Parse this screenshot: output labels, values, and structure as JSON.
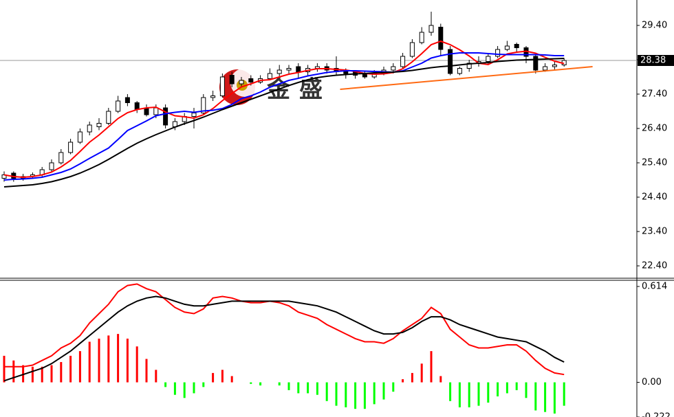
{
  "chart_data": [
    {
      "type": "candlestick",
      "open": [
        24.95,
        25.1,
        24.95,
        25.0,
        25.05,
        25.2,
        25.4,
        25.7,
        26.0,
        26.3,
        26.45,
        26.55,
        26.9,
        27.3,
        27.15,
        27.0,
        26.8,
        27.0,
        26.45,
        26.6,
        26.75,
        26.85,
        27.3,
        27.35,
        27.95,
        27.7,
        27.85,
        27.75,
        27.85,
        28.0,
        28.1,
        28.2,
        28.05,
        28.15,
        28.2,
        28.15,
        28.1,
        28.05,
        28.0,
        27.9,
        28.0,
        28.1,
        28.2,
        28.5,
        28.9,
        29.2,
        29.35,
        28.7,
        28.0,
        28.15,
        28.3,
        28.35,
        28.5,
        28.7,
        28.85,
        28.75,
        28.5,
        28.1,
        28.2,
        28.25
      ],
      "high": [
        25.15,
        25.15,
        25.08,
        25.12,
        25.28,
        25.5,
        25.8,
        26.1,
        26.4,
        26.6,
        26.7,
        27.0,
        27.35,
        27.4,
        27.2,
        27.1,
        27.1,
        27.1,
        26.7,
        26.85,
        27.0,
        27.4,
        27.5,
        28.0,
        28.05,
        27.9,
        27.95,
        27.95,
        28.15,
        28.25,
        28.25,
        28.3,
        28.25,
        28.3,
        28.3,
        28.5,
        28.15,
        28.1,
        28.05,
        28.1,
        28.2,
        28.3,
        28.6,
        29.0,
        29.35,
        29.8,
        29.45,
        28.8,
        28.2,
        28.4,
        28.5,
        28.6,
        28.8,
        28.95,
        28.9,
        28.8,
        28.55,
        28.3,
        28.35,
        28.45
      ],
      "low": [
        24.85,
        24.85,
        24.88,
        24.95,
        25.0,
        25.15,
        25.35,
        25.65,
        25.95,
        26.2,
        26.35,
        26.5,
        26.85,
        27.05,
        26.85,
        26.75,
        26.7,
        26.4,
        26.35,
        26.5,
        26.4,
        26.8,
        27.2,
        27.3,
        27.6,
        27.6,
        27.65,
        27.7,
        27.8,
        27.9,
        28.0,
        27.85,
        27.95,
        28.05,
        28.0,
        27.95,
        27.85,
        27.85,
        27.85,
        27.85,
        27.95,
        28.0,
        28.15,
        28.45,
        28.85,
        29.1,
        28.5,
        27.95,
        27.95,
        28.05,
        28.2,
        28.25,
        28.45,
        28.65,
        28.6,
        28.3,
        28.0,
        28.05,
        28.1,
        28.2
      ],
      "close": [
        25.05,
        24.95,
        25.0,
        25.05,
        25.2,
        25.4,
        25.7,
        26.0,
        26.3,
        26.5,
        26.55,
        26.9,
        27.2,
        27.15,
        26.95,
        26.8,
        27.0,
        26.5,
        26.6,
        26.75,
        26.85,
        27.3,
        27.35,
        27.9,
        27.7,
        27.8,
        27.75,
        27.85,
        28.0,
        28.1,
        28.15,
        28.05,
        28.15,
        28.2,
        28.1,
        28.05,
        28.0,
        27.95,
        27.9,
        28.0,
        28.1,
        28.2,
        28.5,
        28.9,
        29.2,
        29.4,
        28.7,
        28.0,
        28.15,
        28.3,
        28.35,
        28.5,
        28.7,
        28.8,
        28.75,
        28.5,
        28.1,
        28.2,
        28.25,
        28.38
      ],
      "up_color": "#ffffff",
      "down_color": "#000000",
      "series": [
        {
          "color": "#ff0000",
          "values": [
            25.05,
            25.0,
            24.98,
            25.0,
            25.05,
            25.13,
            25.28,
            25.47,
            25.73,
            26.0,
            26.21,
            26.45,
            26.69,
            26.86,
            26.95,
            27.0,
            27.02,
            26.88,
            26.77,
            26.74,
            26.7,
            26.8,
            26.98,
            27.21,
            27.42,
            27.61,
            27.7,
            27.8,
            27.82,
            27.9,
            27.98,
            28.03,
            28.09,
            28.14,
            28.14,
            28.12,
            28.1,
            28.06,
            28.0,
            27.98,
            27.99,
            28.03,
            28.14,
            28.34,
            28.58,
            28.84,
            28.94,
            28.84,
            28.69,
            28.51,
            28.3,
            28.26,
            28.4,
            28.57,
            28.62,
            28.65,
            28.59,
            28.47,
            28.36,
            28.29
          ]
        },
        {
          "color": "#0000ff",
          "values": [
            24.9,
            24.92,
            24.93,
            24.95,
            24.98,
            25.05,
            25.12,
            25.22,
            25.37,
            25.53,
            25.68,
            25.83,
            26.08,
            26.34,
            26.48,
            26.62,
            26.77,
            26.83,
            26.87,
            26.9,
            26.87,
            26.91,
            26.93,
            26.98,
            27.1,
            27.27,
            27.35,
            27.46,
            27.6,
            27.7,
            27.8,
            27.86,
            27.93,
            27.98,
            28.03,
            28.06,
            28.08,
            28.08,
            28.07,
            28.06,
            28.05,
            28.04,
            28.08,
            28.19,
            28.3,
            28.45,
            28.52,
            28.57,
            28.6,
            28.6,
            28.6,
            28.58,
            28.56,
            28.55,
            28.55,
            28.55,
            28.55,
            28.54,
            28.52,
            28.52
          ]
        },
        {
          "color": "#000000",
          "values": [
            24.7,
            24.72,
            24.74,
            24.76,
            24.8,
            24.85,
            24.92,
            25.0,
            25.1,
            25.22,
            25.35,
            25.5,
            25.66,
            25.82,
            25.97,
            26.1,
            26.22,
            26.33,
            26.44,
            26.54,
            26.63,
            26.73,
            26.84,
            26.95,
            27.05,
            27.15,
            27.25,
            27.35,
            27.45,
            27.55,
            27.65,
            27.74,
            27.82,
            27.88,
            27.92,
            27.95,
            27.97,
            27.99,
            28.0,
            28.02,
            28.03,
            28.04,
            28.06,
            28.09,
            28.13,
            28.17,
            28.2,
            28.22,
            28.25,
            28.28,
            28.3,
            28.32,
            28.35,
            28.37,
            28.39,
            28.4,
            28.41,
            28.42,
            28.43,
            28.44
          ]
        }
      ],
      "trendline": {
        "color": "#ff6a13",
        "x": [
          35.4,
          62
        ],
        "y": [
          27.54,
          28.2
        ]
      },
      "last_price": 28.38,
      "ylim": [
        22.04,
        30.14
      ],
      "yticks": [
        {
          "value": 29.4,
          "label": "29.40"
        },
        {
          "value": 28.4,
          "label": "28.40"
        },
        {
          "value": 27.4,
          "label": "27.40"
        },
        {
          "value": 26.4,
          "label": "26.40"
        },
        {
          "value": 25.4,
          "label": "25.40"
        },
        {
          "value": 24.4,
          "label": "24.40"
        },
        {
          "value": 23.4,
          "label": "23.40"
        },
        {
          "value": 22.4,
          "label": "22.40"
        }
      ],
      "watermark": [
        "金",
        "盛"
      ]
    },
    {
      "type": "macd",
      "series": [
        {
          "color": "#ff0000",
          "values": [
            0.1,
            0.1,
            0.1,
            0.11,
            0.14,
            0.17,
            0.22,
            0.25,
            0.3,
            0.38,
            0.44,
            0.5,
            0.58,
            0.62,
            0.63,
            0.6,
            0.58,
            0.53,
            0.48,
            0.45,
            0.44,
            0.47,
            0.54,
            0.55,
            0.54,
            0.52,
            0.51,
            0.51,
            0.52,
            0.51,
            0.49,
            0.45,
            0.43,
            0.41,
            0.37,
            0.34,
            0.31,
            0.28,
            0.26,
            0.26,
            0.25,
            0.28,
            0.33,
            0.37,
            0.41,
            0.48,
            0.44,
            0.34,
            0.29,
            0.24,
            0.22,
            0.22,
            0.23,
            0.24,
            0.24,
            0.2,
            0.14,
            0.09,
            0.06,
            0.05
          ]
        },
        {
          "color": "#000000",
          "values": [
            0.01,
            0.03,
            0.05,
            0.07,
            0.09,
            0.12,
            0.16,
            0.2,
            0.25,
            0.3,
            0.35,
            0.4,
            0.45,
            0.49,
            0.52,
            0.54,
            0.55,
            0.54,
            0.52,
            0.5,
            0.49,
            0.49,
            0.5,
            0.51,
            0.52,
            0.52,
            0.52,
            0.52,
            0.52,
            0.52,
            0.52,
            0.51,
            0.5,
            0.49,
            0.47,
            0.45,
            0.42,
            0.39,
            0.36,
            0.33,
            0.31,
            0.31,
            0.32,
            0.35,
            0.39,
            0.42,
            0.42,
            0.4,
            0.37,
            0.35,
            0.33,
            0.31,
            0.29,
            0.28,
            0.27,
            0.26,
            0.23,
            0.2,
            0.16,
            0.13
          ]
        }
      ],
      "histogram": {
        "up_color": "#ff0000",
        "down_color": "#00ff00",
        "values": [
          0.17,
          0.14,
          0.11,
          0.1,
          0.1,
          0.11,
          0.13,
          0.17,
          0.2,
          0.26,
          0.28,
          0.3,
          0.31,
          0.28,
          0.23,
          0.15,
          0.08,
          -0.03,
          -0.08,
          -0.1,
          -0.07,
          -0.03,
          0.06,
          0.08,
          0.04,
          0.0,
          -0.01,
          -0.02,
          0.0,
          -0.02,
          -0.05,
          -0.07,
          -0.07,
          -0.08,
          -0.12,
          -0.15,
          -0.16,
          -0.17,
          -0.17,
          -0.14,
          -0.11,
          -0.06,
          0.02,
          0.06,
          0.12,
          0.2,
          0.04,
          -0.12,
          -0.16,
          -0.16,
          -0.15,
          -0.13,
          -0.09,
          -0.07,
          -0.05,
          -0.1,
          -0.18,
          -0.19,
          -0.2,
          -0.15
        ]
      },
      "ylim": [
        -0.222,
        0.658
      ],
      "yticks": [
        0.614,
        {
          "value": 0,
          "label": "0.00"
        },
        -0.222
      ]
    }
  ]
}
